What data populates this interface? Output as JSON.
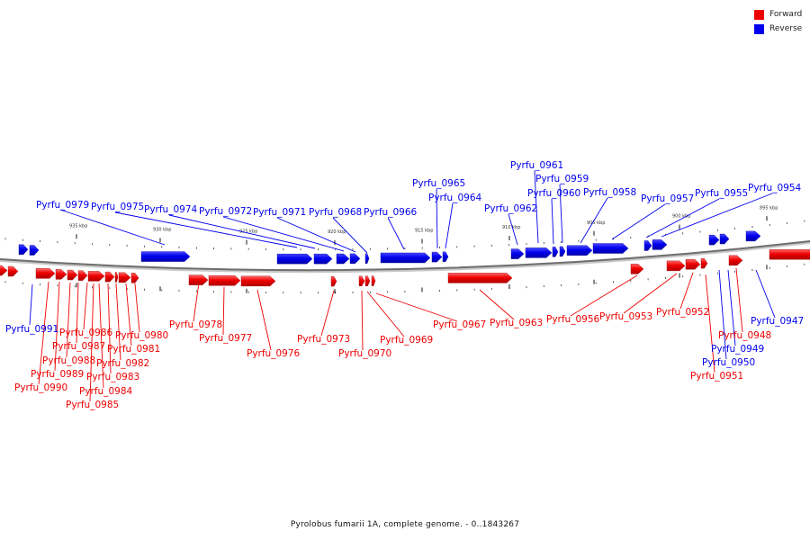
{
  "legend": [
    {
      "label": "Forward",
      "color": "#ee0000"
    },
    {
      "label": "Reverse",
      "color": "#0000ee"
    }
  ],
  "scale_ticks": [
    "935 kbp",
    "930 kbp",
    "925 kbp",
    "920 kbp",
    "915 kbp",
    "910 kbp",
    "905 kbp",
    "900 kbp",
    "895 kbp"
  ],
  "genes": [
    {
      "id": "Pyrfu_0979",
      "strand": "reverse"
    },
    {
      "id": "Pyrfu_0975",
      "strand": "reverse"
    },
    {
      "id": "Pyrfu_0974",
      "strand": "reverse"
    },
    {
      "id": "Pyrfu_0972",
      "strand": "reverse"
    },
    {
      "id": "Pyrfu_0971",
      "strand": "reverse"
    },
    {
      "id": "Pyrfu_0968",
      "strand": "reverse"
    },
    {
      "id": "Pyrfu_0966",
      "strand": "reverse"
    },
    {
      "id": "Pyrfu_0965",
      "strand": "reverse"
    },
    {
      "id": "Pyrfu_0964",
      "strand": "reverse"
    },
    {
      "id": "Pyrfu_0962",
      "strand": "reverse"
    },
    {
      "id": "Pyrfu_0961",
      "strand": "reverse"
    },
    {
      "id": "Pyrfu_0959",
      "strand": "reverse"
    },
    {
      "id": "Pyrfu_0960",
      "strand": "reverse"
    },
    {
      "id": "Pyrfu_0958",
      "strand": "reverse"
    },
    {
      "id": "Pyrfu_0957",
      "strand": "reverse"
    },
    {
      "id": "Pyrfu_0955",
      "strand": "reverse"
    },
    {
      "id": "Pyrfu_0954",
      "strand": "reverse"
    },
    {
      "id": "Pyrfu_0991",
      "strand": "reverse"
    },
    {
      "id": "Pyrfu_0947",
      "strand": "reverse"
    },
    {
      "id": "Pyrfu_0949",
      "strand": "reverse"
    },
    {
      "id": "Pyrfu_0950",
      "strand": "reverse"
    },
    {
      "id": "Pyrfu_0978",
      "strand": "forward"
    },
    {
      "id": "Pyrfu_0977",
      "strand": "forward"
    },
    {
      "id": "Pyrfu_0976",
      "strand": "forward"
    },
    {
      "id": "Pyrfu_0973",
      "strand": "forward"
    },
    {
      "id": "Pyrfu_0970",
      "strand": "forward"
    },
    {
      "id": "Pyrfu_0969",
      "strand": "forward"
    },
    {
      "id": "Pyrfu_0967",
      "strand": "forward"
    },
    {
      "id": "Pyrfu_0963",
      "strand": "forward"
    },
    {
      "id": "Pyrfu_0956",
      "strand": "forward"
    },
    {
      "id": "Pyrfu_0953",
      "strand": "forward"
    },
    {
      "id": "Pyrfu_0952",
      "strand": "forward"
    },
    {
      "id": "Pyrfu_0948",
      "strand": "forward"
    },
    {
      "id": "Pyrfu_0951",
      "strand": "forward"
    },
    {
      "id": "Pyrfu_0986",
      "strand": "forward"
    },
    {
      "id": "Pyrfu_0987",
      "strand": "forward"
    },
    {
      "id": "Pyrfu_0988",
      "strand": "forward"
    },
    {
      "id": "Pyrfu_0989",
      "strand": "forward"
    },
    {
      "id": "Pyrfu_0990",
      "strand": "forward"
    },
    {
      "id": "Pyrfu_0980",
      "strand": "forward"
    },
    {
      "id": "Pyrfu_0981",
      "strand": "forward"
    },
    {
      "id": "Pyrfu_0982",
      "strand": "forward"
    },
    {
      "id": "Pyrfu_0983",
      "strand": "forward"
    },
    {
      "id": "Pyrfu_0984",
      "strand": "forward"
    },
    {
      "id": "Pyrfu_0985",
      "strand": "forward"
    }
  ],
  "footer": "Pyrolobus fumarii 1A, complete genome. - 0..1843267"
}
